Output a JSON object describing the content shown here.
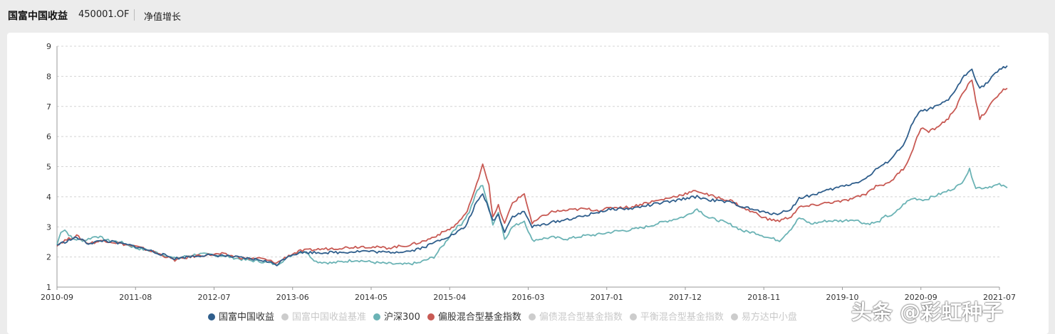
{
  "header": {
    "fund_name": "国富中国收益",
    "fund_code": "450001.OF",
    "tab_label": "净值增长"
  },
  "legend": [
    {
      "label": "国富中国收益",
      "color": "#2f5e8c",
      "active": true
    },
    {
      "label": "国富中国收益基准",
      "color": "#cccccc",
      "active": false
    },
    {
      "label": "沪深300",
      "color": "#6bb3b5",
      "active": true
    },
    {
      "label": "偏股混合型基金指数",
      "color": "#c85a54",
      "active": true
    },
    {
      "label": "偏债混合型基金指数",
      "color": "#cccccc",
      "active": false
    },
    {
      "label": "平衡混合型基金指数",
      "color": "#cccccc",
      "active": false
    },
    {
      "label": "易方达中小盘",
      "color": "#cccccc",
      "active": false
    }
  ],
  "watermark": "头条 @彩虹种子",
  "chart_data": {
    "type": "line",
    "x_ticks": [
      "2010-09",
      "2011-08",
      "2012-07",
      "2013-06",
      "2014-05",
      "2015-04",
      "2016-03",
      "2017-01",
      "2017-12",
      "2018-11",
      "2019-10",
      "2020-09",
      "2021-07"
    ],
    "ylim": [
      1,
      9
    ],
    "y_ticks": [
      1,
      2,
      3,
      4,
      5,
      6,
      7,
      8,
      9
    ],
    "grid": true,
    "legend_position": "bottom",
    "series": [
      {
        "name": "沪深300",
        "color": "#6bb3b5",
        "points": [
          [
            0,
            2.4
          ],
          [
            0.05,
            2.85
          ],
          [
            0.1,
            2.9
          ],
          [
            0.2,
            2.6
          ],
          [
            0.35,
            2.55
          ],
          [
            0.5,
            2.7
          ],
          [
            0.65,
            2.55
          ],
          [
            0.8,
            2.5
          ],
          [
            1.0,
            2.3
          ],
          [
            1.2,
            2.2
          ],
          [
            1.5,
            1.95
          ],
          [
            1.8,
            2.1
          ],
          [
            2.1,
            2.05
          ],
          [
            2.4,
            1.9
          ],
          [
            2.6,
            1.85
          ],
          [
            2.8,
            1.75
          ],
          [
            2.95,
            2.0
          ],
          [
            3.05,
            2.15
          ],
          [
            3.15,
            2.2
          ],
          [
            3.3,
            1.85
          ],
          [
            3.5,
            1.8
          ],
          [
            3.8,
            1.9
          ],
          [
            4.1,
            1.8
          ],
          [
            4.4,
            1.75
          ],
          [
            4.6,
            1.8
          ],
          [
            4.8,
            2.0
          ],
          [
            4.95,
            2.5
          ],
          [
            5.05,
            2.9
          ],
          [
            5.15,
            3.1
          ],
          [
            5.25,
            3.5
          ],
          [
            5.35,
            4.2
          ],
          [
            5.42,
            4.4
          ],
          [
            5.48,
            3.8
          ],
          [
            5.55,
            3.1
          ],
          [
            5.62,
            3.5
          ],
          [
            5.7,
            2.6
          ],
          [
            5.8,
            3.0
          ],
          [
            5.95,
            3.2
          ],
          [
            6.05,
            2.55
          ],
          [
            6.15,
            2.6
          ],
          [
            6.3,
            2.65
          ],
          [
            6.5,
            2.6
          ],
          [
            6.7,
            2.7
          ],
          [
            6.9,
            2.75
          ],
          [
            7.1,
            2.85
          ],
          [
            7.3,
            2.9
          ],
          [
            7.5,
            3.0
          ],
          [
            7.7,
            3.15
          ],
          [
            7.85,
            3.25
          ],
          [
            8.0,
            3.35
          ],
          [
            8.15,
            3.6
          ],
          [
            8.3,
            3.3
          ],
          [
            8.45,
            3.2
          ],
          [
            8.6,
            3.05
          ],
          [
            8.75,
            2.85
          ],
          [
            8.9,
            2.8
          ],
          [
            9.05,
            2.65
          ],
          [
            9.2,
            2.55
          ],
          [
            9.35,
            2.95
          ],
          [
            9.45,
            3.3
          ],
          [
            9.6,
            3.1
          ],
          [
            9.8,
            3.2
          ],
          [
            10.0,
            3.2
          ],
          [
            10.15,
            3.25
          ],
          [
            10.3,
            3.1
          ],
          [
            10.45,
            3.15
          ],
          [
            10.55,
            3.35
          ],
          [
            10.65,
            3.4
          ],
          [
            10.8,
            3.8
          ],
          [
            10.9,
            3.95
          ],
          [
            11.05,
            3.9
          ],
          [
            11.2,
            4.05
          ],
          [
            11.35,
            4.2
          ],
          [
            11.5,
            4.4
          ],
          [
            11.62,
            4.9
          ],
          [
            11.7,
            4.3
          ],
          [
            11.8,
            4.3
          ],
          [
            11.9,
            4.35
          ],
          [
            12.0,
            4.4
          ],
          [
            12.1,
            4.3
          ]
        ]
      },
      {
        "name": "偏股混合型基金指数",
        "color": "#c85a54",
        "points": [
          [
            0,
            2.4
          ],
          [
            0.1,
            2.55
          ],
          [
            0.25,
            2.7
          ],
          [
            0.4,
            2.45
          ],
          [
            0.6,
            2.55
          ],
          [
            0.8,
            2.45
          ],
          [
            1.0,
            2.35
          ],
          [
            1.2,
            2.2
          ],
          [
            1.5,
            1.9
          ],
          [
            1.8,
            2.05
          ],
          [
            2.1,
            2.1
          ],
          [
            2.4,
            1.95
          ],
          [
            2.6,
            1.95
          ],
          [
            2.8,
            1.8
          ],
          [
            2.95,
            2.05
          ],
          [
            3.1,
            2.2
          ],
          [
            3.3,
            2.25
          ],
          [
            3.6,
            2.3
          ],
          [
            3.9,
            2.35
          ],
          [
            4.2,
            2.3
          ],
          [
            4.5,
            2.4
          ],
          [
            4.7,
            2.55
          ],
          [
            4.9,
            2.8
          ],
          [
            5.05,
            3.0
          ],
          [
            5.2,
            3.4
          ],
          [
            5.32,
            4.2
          ],
          [
            5.42,
            5.1
          ],
          [
            5.5,
            4.4
          ],
          [
            5.55,
            3.3
          ],
          [
            5.62,
            3.7
          ],
          [
            5.7,
            3.1
          ],
          [
            5.8,
            3.8
          ],
          [
            5.95,
            4.1
          ],
          [
            6.05,
            3.1
          ],
          [
            6.15,
            3.3
          ],
          [
            6.3,
            3.5
          ],
          [
            6.5,
            3.55
          ],
          [
            6.7,
            3.6
          ],
          [
            6.9,
            3.55
          ],
          [
            7.1,
            3.65
          ],
          [
            7.3,
            3.65
          ],
          [
            7.5,
            3.8
          ],
          [
            7.7,
            3.9
          ],
          [
            7.85,
            4.0
          ],
          [
            8.0,
            4.1
          ],
          [
            8.15,
            4.2
          ],
          [
            8.3,
            4.05
          ],
          [
            8.45,
            3.95
          ],
          [
            8.6,
            3.85
          ],
          [
            8.75,
            3.6
          ],
          [
            8.9,
            3.45
          ],
          [
            9.05,
            3.25
          ],
          [
            9.2,
            3.2
          ],
          [
            9.35,
            3.35
          ],
          [
            9.45,
            3.65
          ],
          [
            9.6,
            3.7
          ],
          [
            9.8,
            3.8
          ],
          [
            10.0,
            3.85
          ],
          [
            10.15,
            3.95
          ],
          [
            10.3,
            4.1
          ],
          [
            10.45,
            4.4
          ],
          [
            10.55,
            4.4
          ],
          [
            10.65,
            4.6
          ],
          [
            10.8,
            5.0
          ],
          [
            10.9,
            5.6
          ],
          [
            11.0,
            6.3
          ],
          [
            11.1,
            6.15
          ],
          [
            11.2,
            6.3
          ],
          [
            11.35,
            6.6
          ],
          [
            11.45,
            7.0
          ],
          [
            11.55,
            7.5
          ],
          [
            11.65,
            7.9
          ],
          [
            11.7,
            7.2
          ],
          [
            11.75,
            6.6
          ],
          [
            11.85,
            6.9
          ],
          [
            11.95,
            7.3
          ],
          [
            12.05,
            7.55
          ],
          [
            12.1,
            7.6
          ]
        ]
      },
      {
        "name": "国富中国收益",
        "color": "#2f5e8c",
        "points": [
          [
            0,
            2.4
          ],
          [
            0.1,
            2.5
          ],
          [
            0.25,
            2.65
          ],
          [
            0.4,
            2.45
          ],
          [
            0.6,
            2.55
          ],
          [
            0.8,
            2.45
          ],
          [
            1.0,
            2.35
          ],
          [
            1.2,
            2.2
          ],
          [
            1.5,
            1.95
          ],
          [
            1.8,
            2.05
          ],
          [
            2.1,
            2.05
          ],
          [
            2.4,
            1.95
          ],
          [
            2.6,
            1.9
          ],
          [
            2.8,
            1.75
          ],
          [
            2.95,
            2.05
          ],
          [
            3.1,
            2.15
          ],
          [
            3.3,
            2.15
          ],
          [
            3.6,
            2.15
          ],
          [
            3.9,
            2.2
          ],
          [
            4.2,
            2.15
          ],
          [
            4.5,
            2.2
          ],
          [
            4.7,
            2.35
          ],
          [
            4.9,
            2.6
          ],
          [
            5.05,
            2.75
          ],
          [
            5.2,
            3.0
          ],
          [
            5.32,
            3.7
          ],
          [
            5.42,
            4.1
          ],
          [
            5.5,
            3.6
          ],
          [
            5.55,
            3.2
          ],
          [
            5.62,
            3.4
          ],
          [
            5.7,
            2.85
          ],
          [
            5.8,
            3.35
          ],
          [
            5.95,
            3.5
          ],
          [
            6.05,
            3.0
          ],
          [
            6.15,
            3.05
          ],
          [
            6.3,
            3.15
          ],
          [
            6.5,
            3.25
          ],
          [
            6.7,
            3.35
          ],
          [
            6.9,
            3.5
          ],
          [
            7.1,
            3.6
          ],
          [
            7.3,
            3.6
          ],
          [
            7.5,
            3.7
          ],
          [
            7.7,
            3.8
          ],
          [
            7.85,
            3.85
          ],
          [
            8.0,
            3.95
          ],
          [
            8.15,
            4.0
          ],
          [
            8.3,
            3.9
          ],
          [
            8.45,
            3.85
          ],
          [
            8.6,
            3.8
          ],
          [
            8.75,
            3.65
          ],
          [
            8.9,
            3.55
          ],
          [
            9.05,
            3.45
          ],
          [
            9.2,
            3.45
          ],
          [
            9.35,
            3.6
          ],
          [
            9.45,
            3.95
          ],
          [
            9.6,
            4.05
          ],
          [
            9.8,
            4.2
          ],
          [
            10.0,
            4.35
          ],
          [
            10.15,
            4.45
          ],
          [
            10.3,
            4.6
          ],
          [
            10.45,
            4.95
          ],
          [
            10.55,
            5.1
          ],
          [
            10.65,
            5.35
          ],
          [
            10.8,
            5.8
          ],
          [
            10.9,
            6.5
          ],
          [
            11.0,
            6.85
          ],
          [
            11.1,
            6.9
          ],
          [
            11.2,
            7.0
          ],
          [
            11.35,
            7.2
          ],
          [
            11.45,
            7.6
          ],
          [
            11.55,
            8.0
          ],
          [
            11.65,
            8.25
          ],
          [
            11.7,
            7.9
          ],
          [
            11.75,
            7.6
          ],
          [
            11.85,
            7.8
          ],
          [
            11.95,
            8.1
          ],
          [
            12.05,
            8.3
          ],
          [
            12.1,
            8.35
          ]
        ]
      }
    ]
  }
}
